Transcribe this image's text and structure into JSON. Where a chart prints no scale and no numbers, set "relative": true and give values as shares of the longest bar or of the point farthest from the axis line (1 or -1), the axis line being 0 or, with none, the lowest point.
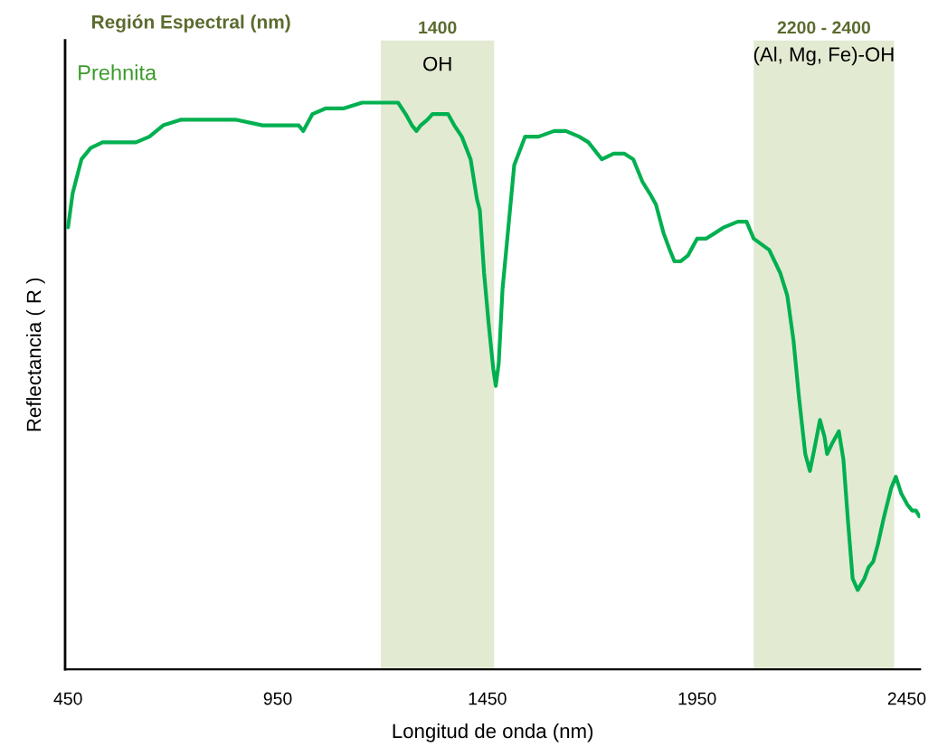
{
  "chart_data": {
    "type": "line",
    "title": "Región Espectral (nm)",
    "xlabel": "Longitud de onda (nm)",
    "ylabel": "Reflectancia ( R )",
    "relative": true,
    "xlim": [
      443,
      2482
    ],
    "xticks": [
      450,
      950,
      1450,
      1950,
      2450
    ],
    "grid": false,
    "legend": false,
    "marker": "none",
    "line_style": "solid",
    "bands": [
      {
        "axis": "x",
        "from": 1196,
        "to": 1466,
        "label": "1400",
        "color": "#e2ead2"
      },
      {
        "axis": "x",
        "from": 2085,
        "to": 2420,
        "label": "2200 - 2400",
        "color": "#e2ead2"
      }
    ],
    "annotations": [
      "OH",
      "(Al, Mg, Fe)-OH"
    ],
    "series": [
      {
        "name": "Prehnita",
        "color": "#00b050",
        "x": [
          450,
          461,
          482,
          504,
          532,
          558,
          590,
          612,
          644,
          677,
          720,
          763,
          806,
          849,
          914,
          957,
          1000,
          1011,
          1033,
          1065,
          1108,
          1151,
          1184,
          1216,
          1237,
          1255,
          1270,
          1281,
          1291,
          1307,
          1319,
          1335,
          1356,
          1371,
          1389,
          1410,
          1425,
          1432,
          1442,
          1453,
          1464,
          1470,
          1477,
          1486,
          1514,
          1540,
          1572,
          1609,
          1637,
          1669,
          1691,
          1723,
          1751,
          1777,
          1798,
          1820,
          1837,
          1852,
          1870,
          1885,
          1896,
          1911,
          1928,
          1950,
          1971,
          1993,
          2014,
          2047,
          2068,
          2085,
          2122,
          2148,
          2165,
          2180,
          2193,
          2208,
          2219,
          2230,
          2243,
          2254,
          2260,
          2273,
          2288,
          2299,
          2310,
          2321,
          2333,
          2349,
          2359,
          2370,
          2381,
          2396,
          2413,
          2424,
          2437,
          2452,
          2463,
          2472,
          2480
        ],
        "values": [
          0.78,
          0.84,
          0.9,
          0.92,
          0.93,
          0.93,
          0.93,
          0.93,
          0.94,
          0.96,
          0.97,
          0.97,
          0.97,
          0.97,
          0.96,
          0.96,
          0.96,
          0.95,
          0.98,
          0.99,
          0.99,
          1.0,
          1.0,
          1.0,
          1.0,
          0.98,
          0.96,
          0.95,
          0.96,
          0.97,
          0.98,
          0.98,
          0.98,
          0.96,
          0.94,
          0.9,
          0.83,
          0.81,
          0.7,
          0.61,
          0.53,
          0.5,
          0.54,
          0.67,
          0.89,
          0.94,
          0.94,
          0.95,
          0.95,
          0.94,
          0.93,
          0.9,
          0.91,
          0.91,
          0.9,
          0.86,
          0.84,
          0.82,
          0.77,
          0.74,
          0.72,
          0.72,
          0.73,
          0.76,
          0.76,
          0.77,
          0.78,
          0.79,
          0.79,
          0.76,
          0.74,
          0.7,
          0.66,
          0.58,
          0.48,
          0.38,
          0.35,
          0.39,
          0.44,
          0.41,
          0.38,
          0.4,
          0.42,
          0.37,
          0.26,
          0.16,
          0.14,
          0.16,
          0.18,
          0.19,
          0.22,
          0.27,
          0.32,
          0.34,
          0.31,
          0.29,
          0.28,
          0.28,
          0.27
        ]
      }
    ]
  }
}
